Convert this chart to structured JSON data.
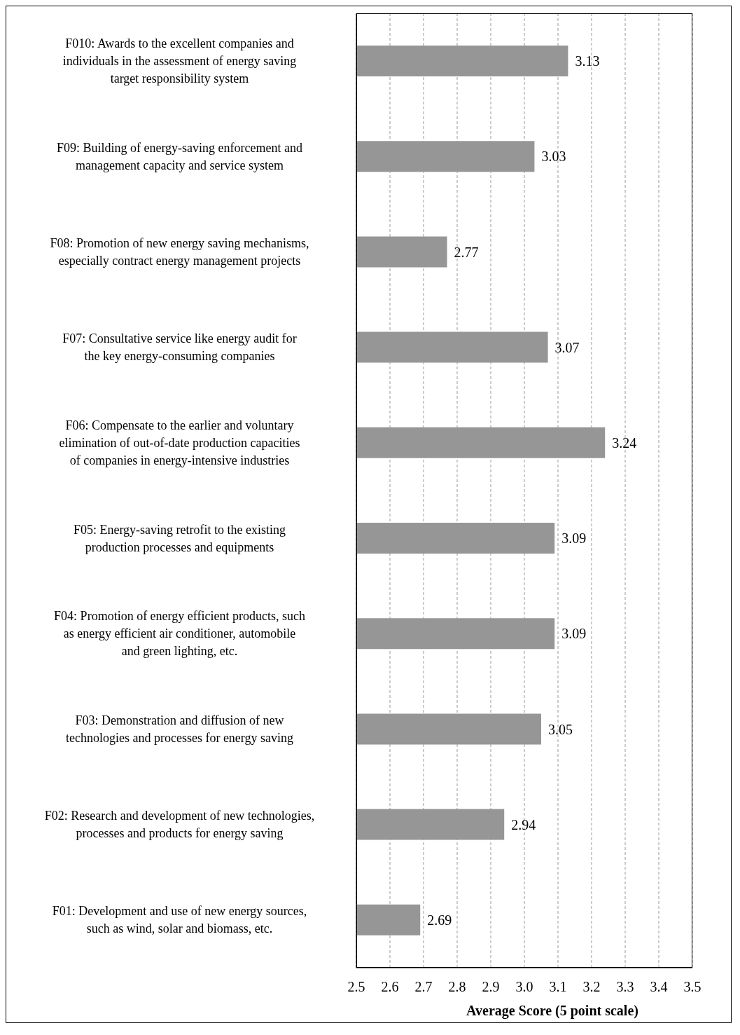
{
  "chart_data": {
    "type": "bar",
    "orientation": "horizontal",
    "xlabel": "Average Score (5 point scale)",
    "categories": [
      "F010: Awards to the excellent companies and individuals in the assessment of energy saving target responsibility system",
      "F09: Building of energy-saving enforcement and management capacity and service system",
      "F08: Promotion of new energy saving mechanisms, especially contract energy management projects",
      "F07: Consultative service like energy audit for the key energy-consuming companies",
      "F06: Compensate to the earlier and voluntary elimination of out-of-date production capacities of companies in energy-intensive industries",
      "F05: Energy-saving retrofit to the existing production processes and equipments",
      "F04: Promotion of energy efficient products, such as energy efficient air conditioner, automobile and green lighting, etc.",
      "F03: Demonstration and diffusion of new technologies and processes for energy saving",
      "F02: Research and development of new technologies, processes and products for energy saving",
      "F01: Development and use of new energy sources, such as wind, solar and biomass, etc."
    ],
    "values": [
      3.13,
      3.03,
      2.77,
      3.07,
      3.24,
      3.09,
      3.09,
      3.05,
      2.94,
      2.69
    ],
    "color": "#969696",
    "data_labels": true,
    "grid": "x",
    "xlim": [
      2.5,
      3.5
    ],
    "xticks": [
      2.5,
      2.6,
      2.7,
      2.8,
      2.9,
      {
        "value": 3,
        "label": "3.0"
      },
      3.1,
      3.2,
      3.3,
      3.4,
      3.5
    ]
  }
}
